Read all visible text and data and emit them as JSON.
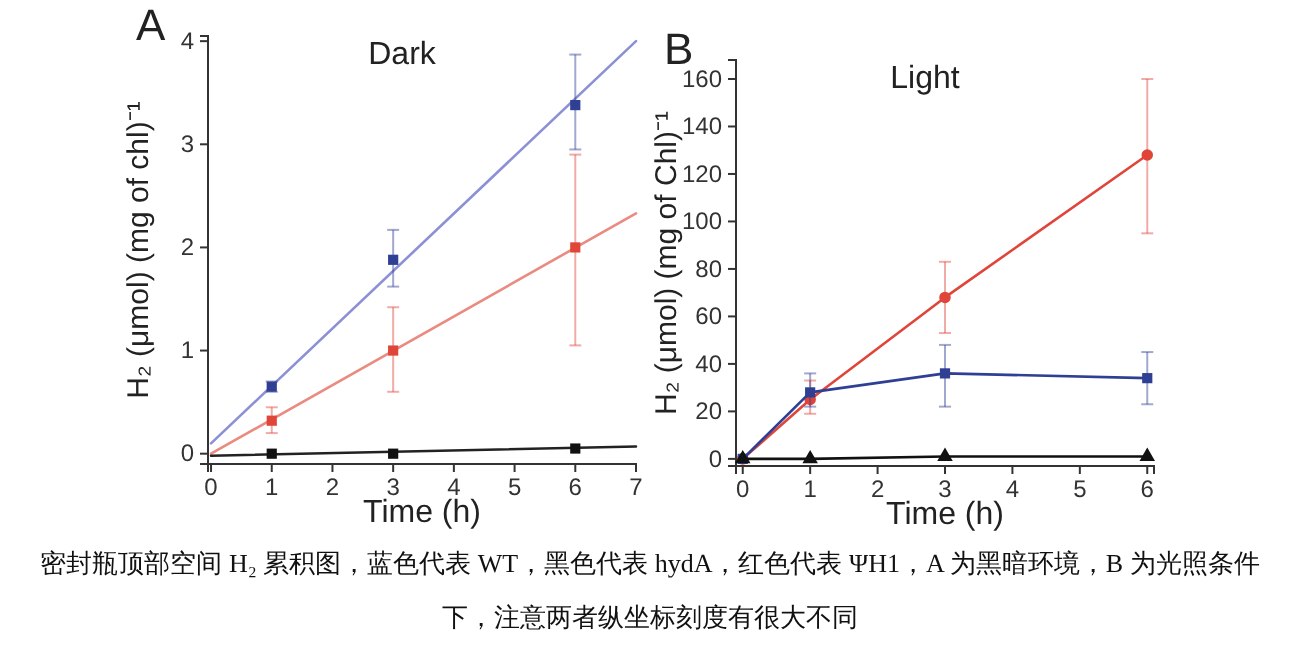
{
  "chart_data": [
    {
      "type": "scatter",
      "title": "Dark",
      "xlabel": "Time (h)",
      "ylabel": "H₂ (μmol) (mg of chl)⁻¹",
      "annotations": [
        "A",
        "密封瓶顶部空间 H₂ 累积图，蓝色代表 WT，黑色代表 hydA，红色代表 ΨH1，A 为黑暗环境，B 为光照条件下，注意两者纵坐标刻度有很大不同"
      ],
      "xlim": [
        -0.05,
        7
      ],
      "xticks": [
        0,
        1,
        2,
        3,
        4,
        5,
        6,
        7
      ],
      "ylim": [
        -0.1,
        4.05
      ],
      "yticks": [
        0,
        1,
        2,
        3,
        4
      ],
      "grid": false,
      "marker": "square",
      "series": [
        {
          "type": "line",
          "color": "#8c90d4",
          "x": [
            0,
            7
          ],
          "values": [
            0.1,
            4.0
          ],
          "marker": "none"
        },
        {
          "type": "line",
          "color": "#ea8a80",
          "x": [
            0,
            7
          ],
          "values": [
            0,
            2.33
          ],
          "marker": "none"
        },
        {
          "type": "line",
          "color": "#222222",
          "x": [
            0,
            7
          ],
          "values": [
            -0.02,
            0.07
          ],
          "marker": "none"
        },
        {
          "type": "scatter",
          "color": "#2e3f94",
          "x": [
            1,
            3,
            6
          ],
          "values": [
            0.65,
            1.88,
            3.38
          ],
          "errors": [
            0.05,
            [
              1.62,
              2.17
            ],
            [
              2.95,
              3.87
            ]
          ]
        },
        {
          "type": "scatter",
          "color": "#e0453a",
          "x": [
            1,
            3,
            6
          ],
          "values": [
            0.32,
            1.0,
            2.0
          ],
          "errors": [
            [
              0.2,
              0.45
            ],
            [
              0.6,
              1.42
            ],
            [
              1.05,
              2.9
            ]
          ]
        },
        {
          "type": "scatter",
          "color": "#111111",
          "x": [
            1,
            3,
            6
          ],
          "values": [
            0,
            0,
            0.05
          ]
        }
      ]
    },
    {
      "type": "line",
      "title": "Light",
      "xlabel": "Time (h)",
      "ylabel": "H₂ (μmol) (mg of Chl)⁻¹",
      "annotations": [
        "B"
      ],
      "xlim": [
        -0.1,
        6.1
      ],
      "xticks": [
        0,
        1,
        2,
        3,
        4,
        5,
        6
      ],
      "ylim": [
        -3,
        168
      ],
      "yticks": [
        0,
        20,
        40,
        60,
        80,
        100,
        120,
        140,
        160
      ],
      "grid": false,
      "marker": "square",
      "series": [
        {
          "color": "#e0453a",
          "x": [
            0,
            1,
            3,
            6
          ],
          "values": [
            0,
            25,
            68,
            128
          ],
          "errors": [
            null,
            [
              19,
              33
            ],
            [
              53,
              83
            ],
            [
              95,
              160
            ]
          ],
          "marker": "circle"
        },
        {
          "color": "#2e3f94",
          "x": [
            0,
            1,
            3,
            6
          ],
          "values": [
            0,
            28,
            36,
            34
          ],
          "errors": [
            null,
            [
              22,
              36
            ],
            [
              22,
              48
            ],
            [
              23,
              45
            ]
          ]
        },
        {
          "color": "#111111",
          "x": [
            0,
            1,
            3,
            6
          ],
          "values": [
            0,
            0,
            1,
            1
          ],
          "marker": "triangle"
        }
      ]
    }
  ]
}
